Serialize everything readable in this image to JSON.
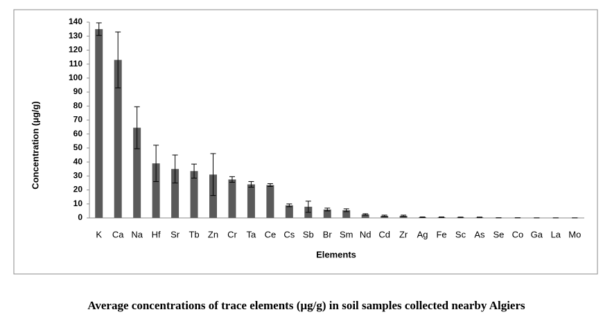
{
  "chart_data": {
    "type": "bar",
    "title": "Average concentrations of trace elements (µg/g) in soil samples collected nearby Algiers",
    "x_label": "Elements",
    "y_label": "Concentration (µg/g)",
    "categories": [
      "K",
      "Ca",
      "Na",
      "Hf",
      "Sr",
      "Tb",
      "Zn",
      "Cr",
      "Ta",
      "Ce",
      "Cs",
      "Sb",
      "Br",
      "Sm",
      "Nd",
      "Cd",
      "Zr",
      "Ag",
      "Fe",
      "Sc",
      "As",
      "Se",
      "Co",
      "Ga",
      "La",
      "Mo"
    ],
    "values": [
      135,
      113,
      64.5,
      39,
      35,
      33.5,
      31,
      27.5,
      24,
      23.5,
      9,
      8,
      6,
      5.5,
      2.5,
      1.5,
      1.5,
      0.5,
      0.5,
      0.4,
      0.4,
      0.1,
      0.1,
      0.05,
      0.05,
      0.05
    ],
    "errors": [
      4.5,
      20,
      15,
      13,
      10,
      5,
      15,
      2,
      2,
      1,
      1,
      4,
      1,
      1,
      0.5,
      0.5,
      0.5,
      0.2,
      0.2,
      0.2,
      0.2,
      0.05,
      0.05,
      0.02,
      0.02,
      0.02
    ],
    "color": "#5a5a5a",
    "ylim": [
      0,
      140
    ],
    "yticks": [
      0,
      10,
      20,
      30,
      40,
      50,
      60,
      70,
      80,
      90,
      100,
      110,
      120,
      130,
      140
    ],
    "grid": false
  }
}
